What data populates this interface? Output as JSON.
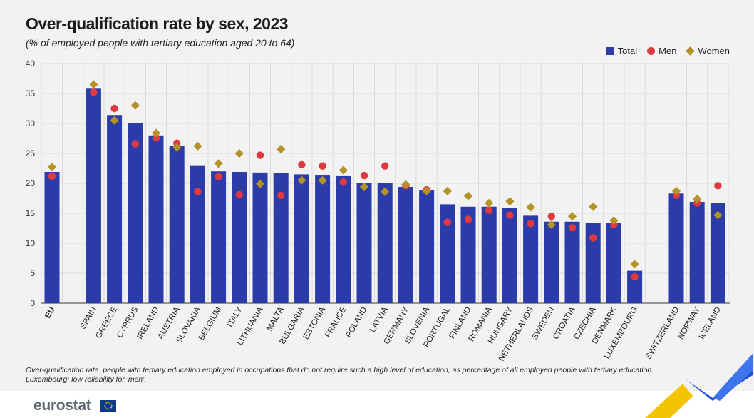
{
  "header": {
    "title": "Over-qualification rate by sex, 2023",
    "subtitle": "(% of employed people with tertiary education aged 20 to 64)"
  },
  "legend": {
    "total_label": "Total",
    "men_label": "Men",
    "women_label": "Women"
  },
  "colors": {
    "total": "#2b3ba8",
    "men": "#de3a3f",
    "women": "#b39227",
    "grid": "#d4d4d4",
    "panel": "#f2f2f2"
  },
  "notes": {
    "line1": "Over-qualification rate: people with tertiary education employed in occupations that do not require such a high level of education, as percentage of all employed people with tertiary education.",
    "line2": "Luxembourg: low reliability for 'men'."
  },
  "logo": {
    "text": "eurostat"
  },
  "chart_data": {
    "type": "bar",
    "ylim": [
      0,
      40
    ],
    "yticks": [
      0,
      5,
      10,
      15,
      20,
      25,
      30,
      35,
      40
    ],
    "grid": true,
    "legend_position": "top-right",
    "categories": [
      "EU",
      "SPAIN",
      "GREECE",
      "CYPRUS",
      "IRELAND",
      "AUSTRIA",
      "SLOVAKIA",
      "BELGIUM",
      "ITALY",
      "LITHUANIA",
      "MALTA",
      "BULGARIA",
      "ESTONIA",
      "FRANCE",
      "POLAND",
      "LATVIA",
      "GERMANY",
      "SLOVENIA",
      "PORTUGAL",
      "FINLAND",
      "ROMANIA",
      "HUNGARY",
      "NETHERLANDS",
      "SWEDEN",
      "CROATIA",
      "CZECHIA",
      "DENMARK",
      "LUXEMBOURG",
      "SWITZERLAND",
      "NORWAY",
      "ICELAND"
    ],
    "series": [
      {
        "name": "Total",
        "kind": "bar",
        "values": [
          21.9,
          35.8,
          31.4,
          30.1,
          28.0,
          26.2,
          22.9,
          22.0,
          21.9,
          21.8,
          21.7,
          21.5,
          21.3,
          21.2,
          20.1,
          20.1,
          19.4,
          18.8,
          16.5,
          16.1,
          16.1,
          15.9,
          14.6,
          13.6,
          13.6,
          13.4,
          13.4,
          5.4,
          18.3,
          16.9,
          16.7
        ]
      },
      {
        "name": "Men",
        "kind": "dot",
        "values": [
          21.2,
          35.2,
          32.5,
          26.6,
          27.6,
          26.7,
          18.6,
          21.1,
          18.1,
          24.7,
          18.0,
          23.1,
          22.9,
          20.2,
          21.3,
          22.9,
          19.6,
          18.9,
          13.5,
          14.0,
          15.5,
          14.7,
          13.3,
          14.5,
          12.6,
          10.9,
          13.1,
          4.4,
          18.0,
          16.7,
          19.6
        ]
      },
      {
        "name": "Women",
        "kind": "diamond",
        "values": [
          22.7,
          36.5,
          30.5,
          33.0,
          28.4,
          26.0,
          26.2,
          23.3,
          25.0,
          19.9,
          25.7,
          20.5,
          20.5,
          22.2,
          19.4,
          18.6,
          19.8,
          18.7,
          18.7,
          17.9,
          16.7,
          17.0,
          16.0,
          13.1,
          14.5,
          16.1,
          13.8,
          6.5,
          18.7,
          17.4,
          14.7
        ]
      }
    ]
  }
}
